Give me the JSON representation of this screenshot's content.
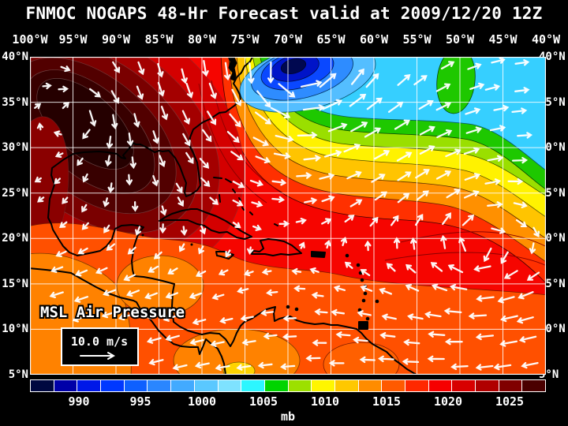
{
  "title": "FNMOC NOGAPS 48-Hr Forecast valid at 2009/12/20 12Z",
  "map": {
    "annotation": "MSL Air Pressure",
    "wind_legend": {
      "speed_label": "10.0 m/s",
      "arrow_icon": "right-arrow"
    },
    "features": {
      "low_center_color": "#000850",
      "high_center_color": "#250000",
      "base_color": "#F60500",
      "grid_color": "#ffffff",
      "coast_color": "#000000",
      "wind_arrow_color": "#ffffff"
    }
  },
  "axes": {
    "lon_labels": [
      "100°W",
      "95°W",
      "90°W",
      "85°W",
      "80°W",
      "75°W",
      "70°W",
      "65°W",
      "60°W",
      "55°W",
      "50°W",
      "45°W",
      "40°W"
    ],
    "lat_labels": [
      "40°N",
      "35°N",
      "30°N",
      "25°N",
      "20°N",
      "15°N",
      "10°N",
      "5°N"
    ]
  },
  "colorbar": {
    "unit": "mb",
    "tick_labels": [
      "990",
      "995",
      "1000",
      "1005",
      "1010",
      "1015",
      "1020",
      "1025"
    ],
    "cell_colors": [
      "#000840",
      "#0000A8",
      "#0018E8",
      "#0038FF",
      "#0E60FF",
      "#2A86FF",
      "#42AAFF",
      "#5AC8FF",
      "#7EE2FF",
      "#2CF6FF",
      "#00D400",
      "#9CE000",
      "#FFF600",
      "#FFC800",
      "#FF8C00",
      "#FF5A00",
      "#FF2800",
      "#F60000",
      "#D80000",
      "#B00000",
      "#800000",
      "#4A0000"
    ]
  }
}
